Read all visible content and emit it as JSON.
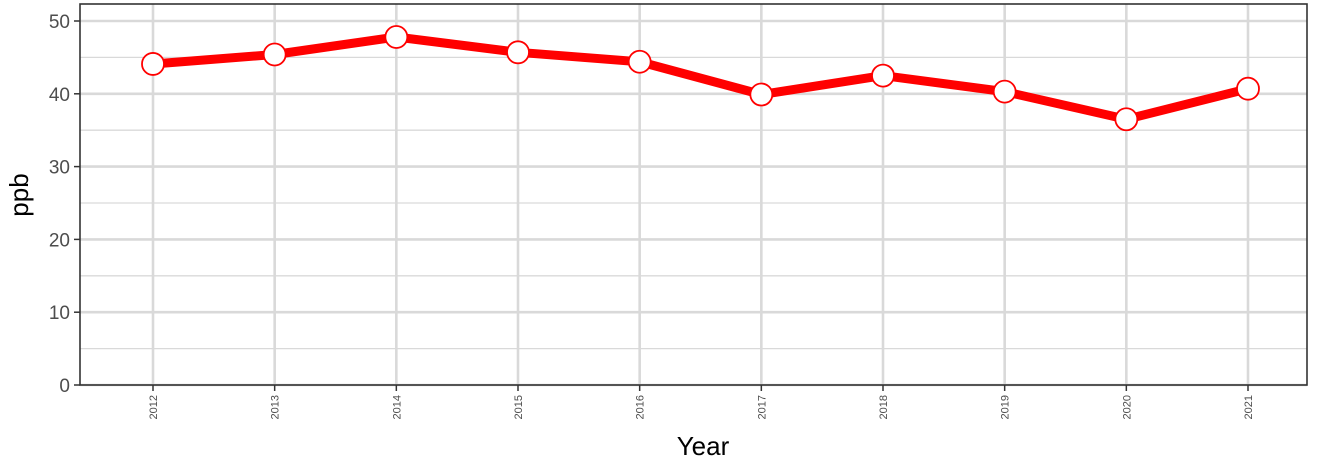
{
  "chart_data": {
    "type": "line",
    "title": "",
    "xlabel": "Year",
    "ylabel": "ppb",
    "x": [
      "2012",
      "2013",
      "2014",
      "2015",
      "2016",
      "2017",
      "2018",
      "2019",
      "2020",
      "2021"
    ],
    "series": [
      {
        "values": [
          44.1,
          45.4,
          47.8,
          45.7,
          44.4,
          39.9,
          42.5,
          40.3,
          36.5,
          40.7
        ]
      }
    ],
    "ylim": [
      0,
      50
    ],
    "yticks": [
      "0",
      "10",
      "20",
      "30",
      "40",
      "50"
    ],
    "grid": true,
    "legend": "none",
    "colors": {
      "line": "#ff0000",
      "marker_fill": "#ffffff",
      "marker_stroke": "#ff0000",
      "grid": "#d9d9d9",
      "panel_border": "#333333"
    }
  }
}
